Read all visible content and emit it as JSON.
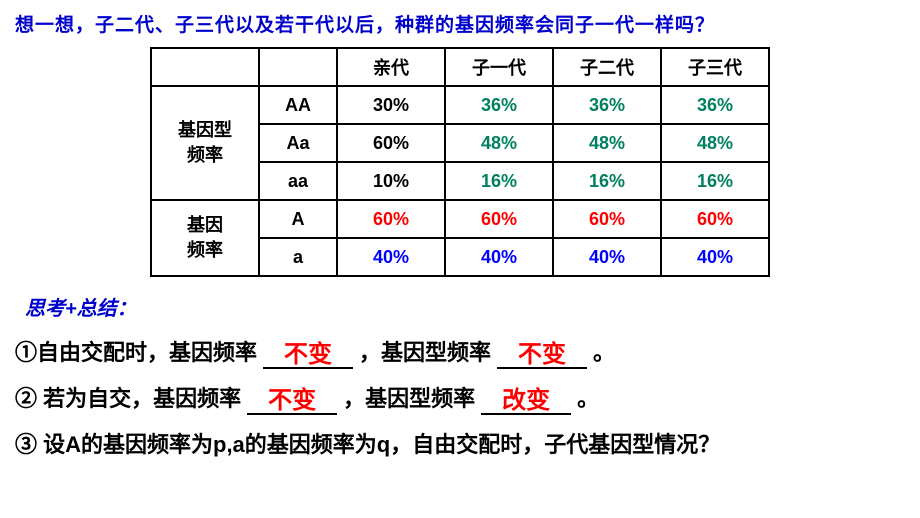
{
  "top_question": "想一想，子二代、子三代以及若干代以后，种群的基因频率会同子一代一样吗？",
  "table": {
    "headers": [
      "",
      "",
      "亲代",
      "子一代",
      "子二代",
      "子三代"
    ],
    "row_group1_label": "基因型\n频率",
    "row_group2_label": "基因\n频率",
    "rows": [
      {
        "sub": "AA",
        "sub_color": "#000",
        "cells": [
          {
            "v": "30%",
            "c": "#000"
          },
          {
            "v": "36%",
            "c": "#008060"
          },
          {
            "v": "36%",
            "c": "#008060"
          },
          {
            "v": "36%",
            "c": "#008060"
          }
        ]
      },
      {
        "sub": "Aa",
        "sub_color": "#000",
        "cells": [
          {
            "v": "60%",
            "c": "#000"
          },
          {
            "v": "48%",
            "c": "#008060"
          },
          {
            "v": "48%",
            "c": "#008060"
          },
          {
            "v": "48%",
            "c": "#008060"
          }
        ]
      },
      {
        "sub": "aa",
        "sub_color": "#000",
        "cells": [
          {
            "v": "10%",
            "c": "#000"
          },
          {
            "v": "16%",
            "c": "#008060"
          },
          {
            "v": "16%",
            "c": "#008060"
          },
          {
            "v": "16%",
            "c": "#008060"
          }
        ]
      },
      {
        "sub": "A",
        "sub_color": "#000",
        "cells": [
          {
            "v": "60%",
            "c": "#ff0000"
          },
          {
            "v": "60%",
            "c": "#ff0000"
          },
          {
            "v": "60%",
            "c": "#ff0000"
          },
          {
            "v": "60%",
            "c": "#ff0000"
          }
        ]
      },
      {
        "sub": "a",
        "sub_color": "#000",
        "cells": [
          {
            "v": "40%",
            "c": "#0000ff"
          },
          {
            "v": "40%",
            "c": "#0000ff"
          },
          {
            "v": "40%",
            "c": "#0000ff"
          },
          {
            "v": "40%",
            "c": "#0000ff"
          }
        ]
      }
    ]
  },
  "thinking_label": "思考+总结：",
  "statements": {
    "s1_prefix": "①自由交配时，基因频率",
    "s1_fill1": "不变",
    "s1_mid": "，基因型频率",
    "s1_fill2": "不变",
    "s1_suffix": "。",
    "s2_prefix": "② 若为自交，基因频率",
    "s2_fill1": "不变",
    "s2_mid": "，基因型频率",
    "s2_fill2": "改变",
    "s2_suffix": "。",
    "s3": "③ 设A的基因频率为p,a的基因频率为q，自由交配时，子代基因型情况？"
  },
  "colors": {
    "question_blue": "#0000cc",
    "teal": "#008060",
    "red": "#ff0000",
    "blue": "#0000ff"
  }
}
